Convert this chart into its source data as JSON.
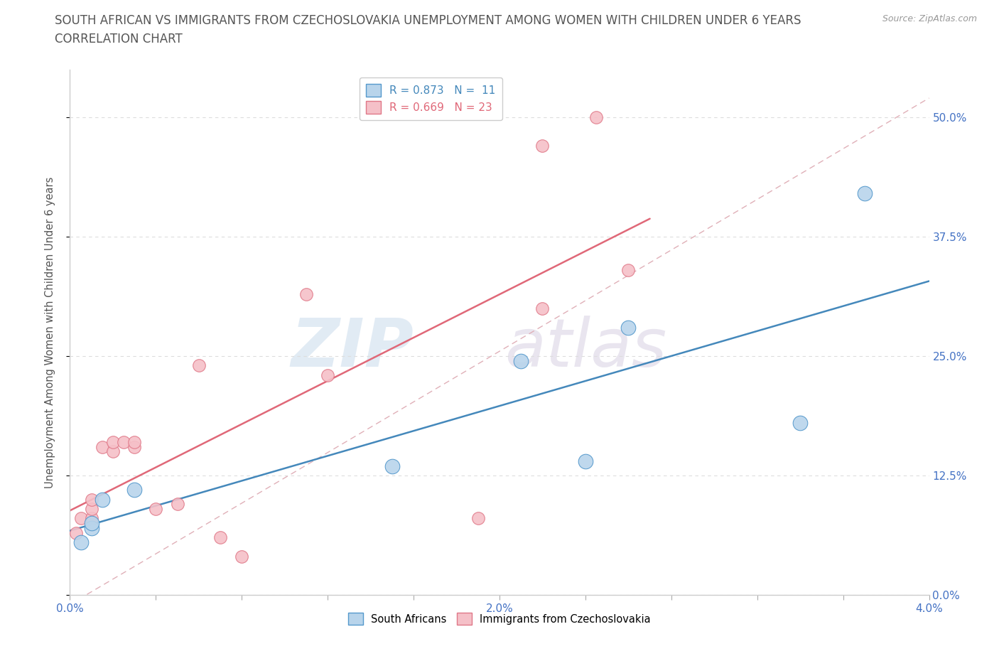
{
  "title_line1": "SOUTH AFRICAN VS IMMIGRANTS FROM CZECHOSLOVAKIA UNEMPLOYMENT AMONG WOMEN WITH CHILDREN UNDER 6 YEARS",
  "title_line2": "CORRELATION CHART",
  "source": "Source: ZipAtlas.com",
  "ylabel": "Unemployment Among Women with Children Under 6 years",
  "xlim": [
    0.0,
    0.04
  ],
  "ylim": [
    0.0,
    0.55
  ],
  "ytick_vals": [
    0.0,
    0.125,
    0.25,
    0.375,
    0.5
  ],
  "ytick_labels": [
    "0.0%",
    "12.5%",
    "25.0%",
    "37.5%",
    "50.0%"
  ],
  "xtick_vals": [
    0.0,
    0.004,
    0.008,
    0.012,
    0.016,
    0.02,
    0.024,
    0.028,
    0.032,
    0.036,
    0.04
  ],
  "xtick_labels": [
    "0.0%",
    "",
    "",
    "",
    "",
    "2.0%",
    "",
    "",
    "",
    "",
    "4.0%"
  ],
  "south_african_x": [
    0.0005,
    0.001,
    0.001,
    0.0015,
    0.003,
    0.015,
    0.021,
    0.024,
    0.026,
    0.034,
    0.037
  ],
  "south_african_y": [
    0.055,
    0.07,
    0.075,
    0.1,
    0.11,
    0.135,
    0.245,
    0.14,
    0.28,
    0.18,
    0.42
  ],
  "czech_x": [
    0.0003,
    0.0005,
    0.001,
    0.001,
    0.001,
    0.0015,
    0.002,
    0.002,
    0.0025,
    0.003,
    0.003,
    0.004,
    0.005,
    0.006,
    0.007,
    0.008,
    0.011,
    0.012,
    0.019,
    0.022,
    0.022,
    0.0245,
    0.026
  ],
  "czech_y": [
    0.065,
    0.08,
    0.08,
    0.09,
    0.1,
    0.155,
    0.15,
    0.16,
    0.16,
    0.155,
    0.16,
    0.09,
    0.095,
    0.24,
    0.06,
    0.04,
    0.315,
    0.23,
    0.08,
    0.3,
    0.47,
    0.5,
    0.34
  ],
  "sa_R": 0.873,
  "sa_N": 11,
  "cz_R": 0.669,
  "cz_N": 23,
  "sa_fill": "#b8d4eb",
  "cz_fill": "#f5c0c8",
  "sa_edge": "#5599cc",
  "cz_edge": "#e07888",
  "sa_line": "#4488bb",
  "cz_line": "#e06878",
  "diag_color": "#e0b0b8",
  "grid_color": "#dddddd",
  "bg_color": "#ffffff",
  "tick_color": "#4472c4",
  "title_color": "#555555",
  "source_color": "#999999",
  "ylabel_color": "#555555"
}
